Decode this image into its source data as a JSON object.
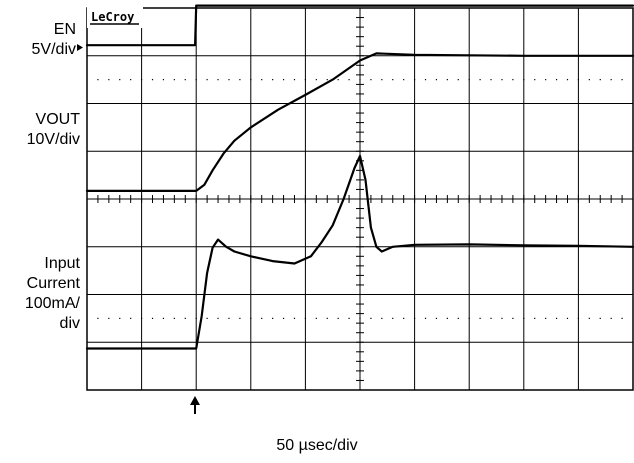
{
  "brand": "LeCroy",
  "channels": [
    {
      "id": "en",
      "lines": [
        "EN",
        "5V/div"
      ]
    },
    {
      "id": "vout",
      "lines": [
        "VOUT",
        "10V/div"
      ]
    },
    {
      "id": "iin",
      "lines": [
        "Input",
        "Current",
        "100mA/",
        "div"
      ]
    }
  ],
  "timebase_label": "50 µsec/div",
  "chart_data": {
    "type": "line",
    "title": "",
    "xlabel": "50 µsec/div",
    "grid": true,
    "x_divisions": 10,
    "y_divisions": 8,
    "x_unit": "divisions (50 µs each)",
    "y_unit": "divisions from screen top",
    "trigger_marker_x": 2.0,
    "series": [
      {
        "name": "EN",
        "scale": "5V/div",
        "x": [
          0,
          1.98,
          2.0,
          10
        ],
        "y": [
          0.78,
          0.78,
          -0.05,
          -0.05
        ]
      },
      {
        "name": "VOUT",
        "scale": "10V/div",
        "x": [
          0,
          2.0,
          2.15,
          2.3,
          2.5,
          2.7,
          3.0,
          3.5,
          4.0,
          4.5,
          5.0,
          5.3,
          6.0,
          8.0,
          10
        ],
        "y": [
          3.83,
          3.83,
          3.7,
          3.4,
          3.05,
          2.78,
          2.5,
          2.13,
          1.82,
          1.5,
          1.1,
          0.95,
          0.98,
          1.0,
          1.0
        ]
      },
      {
        "name": "Input Current",
        "scale": "100mA/div",
        "x": [
          0,
          2.0,
          2.1,
          2.2,
          2.3,
          2.4,
          2.55,
          2.7,
          3.0,
          3.4,
          3.8,
          4.1,
          4.3,
          4.5,
          4.7,
          4.9,
          5.0,
          5.1,
          5.2,
          5.3,
          5.4,
          5.6,
          6.0,
          7.0,
          8.0,
          9.0,
          10
        ],
        "y": [
          7.13,
          7.13,
          6.45,
          5.55,
          5.02,
          4.85,
          5.0,
          5.1,
          5.2,
          5.3,
          5.35,
          5.2,
          4.9,
          4.55,
          4.0,
          3.35,
          3.1,
          3.6,
          4.6,
          5.0,
          5.1,
          5.0,
          4.96,
          4.95,
          4.97,
          4.98,
          5.0
        ]
      }
    ]
  }
}
